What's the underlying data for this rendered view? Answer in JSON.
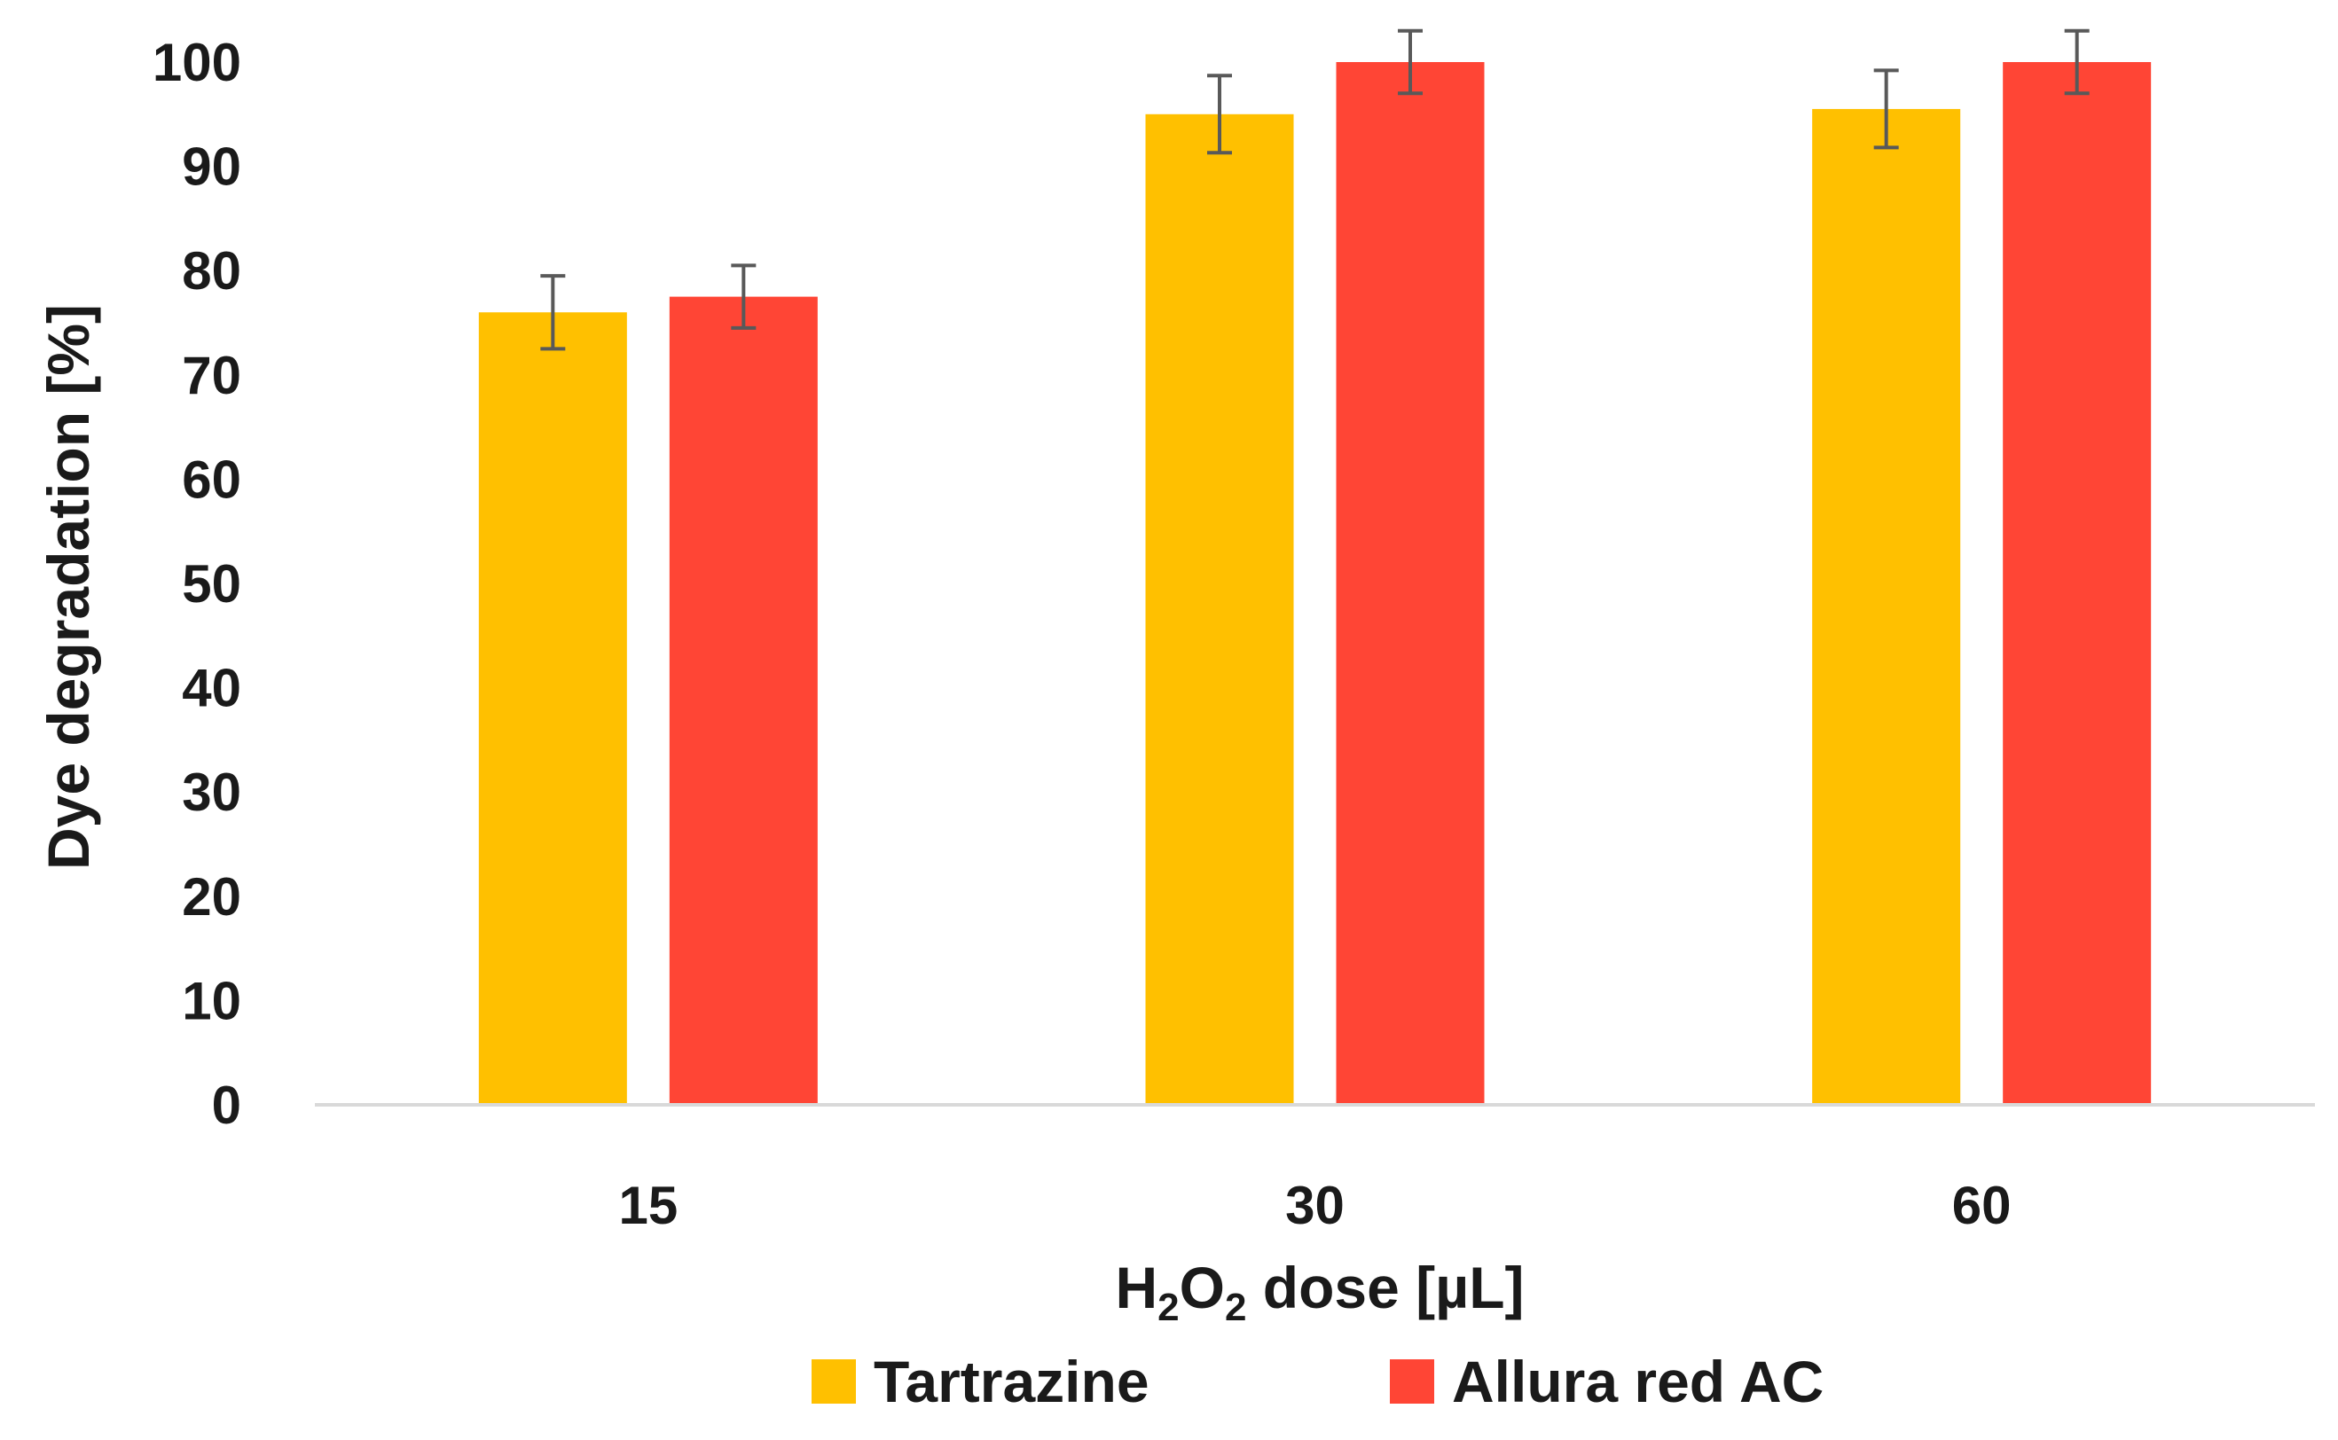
{
  "chart_data": {
    "type": "bar",
    "title": "",
    "xlabel": {
      "main": "H",
      "sub1": "2",
      "mid": "O",
      "sub2": "2",
      "tail": " dose [µL]"
    },
    "ylabel": "Dye degradation [%]",
    "ylim": [
      0,
      100
    ],
    "yticks": [
      "0",
      "10",
      "20",
      "30",
      "40",
      "50",
      "60",
      "70",
      "80",
      "90",
      "100"
    ],
    "categories": [
      "15",
      "30",
      "60"
    ],
    "grid": false,
    "legend_position": "bottom",
    "series": [
      {
        "name": "Tartrazine",
        "color": "#FFC000",
        "values": [
          76,
          95,
          95.5
        ],
        "errors": [
          3.5,
          3.7,
          3.7
        ]
      },
      {
        "name": "Allura red AC",
        "color": "#FF4535",
        "values": [
          77.5,
          100,
          100
        ],
        "errors": [
          3,
          3,
          3
        ]
      }
    ],
    "error_bar_color": "#595959",
    "axis_color": "#d9d9d9"
  }
}
